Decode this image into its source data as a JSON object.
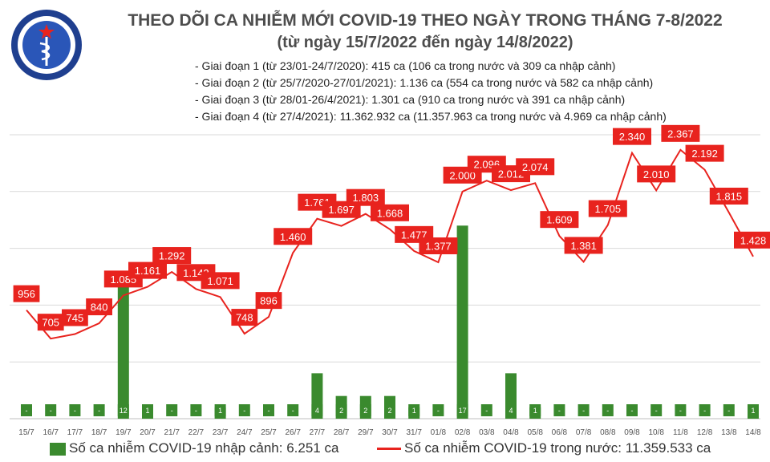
{
  "header": {
    "title": "THEO DÕI CA NHIỄM MỚI COVID-19 THEO NGÀY TRONG THÁNG 7-8/2022",
    "subtitle": "(từ ngày 15/7/2022 đến ngày 14/8/2022)",
    "logo_top_text": "BỘ Y TẾ",
    "logo_bottom_text": "MINISTRY OF HEALTH"
  },
  "notes": [
    "- Giai đoạn 1 (từ 23/01-24/7/2020): 415 ca (106 ca trong nước và 309 ca nhập cảnh)",
    "- Giai đoạn 2 (từ 25/7/2020-27/01/2021): 1.136 ca (554 ca trong nước và 582 ca nhập cảnh)",
    "- Giai đoạn 3 (từ 28/01-26/4/2021): 1.301 ca (910 ca trong nước và 391 ca nhập cảnh)",
    "- Giai đoạn 4 (từ 27/4/2021): 11.362.932 ca (11.357.963 ca trong nước và 4.969 ca nhập cảnh)"
  ],
  "legend": {
    "bar": "Số ca nhiễm COVID-19 nhập cảnh: 6.251 ca",
    "line": "Số ca nhiễm COVID-19 trong nước: 11.359.533 ca"
  },
  "colors": {
    "bar": "#3a8a2e",
    "line": "#e8231e",
    "label_bg": "#e8231e",
    "label_text": "#ffffff",
    "bar_label_text": "#ffffff",
    "grid": "#d9d9d9",
    "title": "#4d4d4d"
  },
  "chart_data": {
    "type": "bar",
    "categories": [
      "15/7",
      "16/7",
      "17/7",
      "18/7",
      "19/7",
      "20/7",
      "21/7",
      "22/7",
      "23/7",
      "24/7",
      "25/7",
      "26/7",
      "27/7",
      "28/7",
      "29/7",
      "30/7",
      "31/7",
      "01/8",
      "02/8",
      "03/8",
      "04/8",
      "05/8",
      "06/8",
      "07/8",
      "08/8",
      "09/8",
      "10/8",
      "11/8",
      "12/8",
      "13/8",
      "14/8"
    ],
    "series": [
      {
        "name": "Số ca nhiễm COVID-19 nhập cảnh: 6.251 ca",
        "type": "bar",
        "axis": "right",
        "values": [
          0,
          0,
          0,
          0,
          12,
          1,
          0,
          0,
          1,
          0,
          0,
          0,
          4,
          2,
          2,
          2,
          1,
          0,
          17,
          0,
          4,
          1,
          0,
          0,
          0,
          0,
          0,
          0,
          0,
          0,
          1
        ],
        "labels": [
          "-",
          "-",
          "-",
          "-",
          "12",
          "1",
          "-",
          "-",
          "1",
          "-",
          "-",
          "-",
          "4",
          "2",
          "2",
          "2",
          "1",
          "-",
          "17",
          "-",
          "4",
          "1",
          "-",
          "-",
          "-",
          "-",
          "-",
          "-",
          "-",
          "-",
          "1"
        ]
      },
      {
        "name": "Số ca nhiễm COVID-19 trong nước: 11.359.533 ca",
        "type": "line",
        "axis": "left",
        "values": [
          956,
          705,
          745,
          840,
          1085,
          1161,
          1292,
          1142,
          1071,
          748,
          896,
          1460,
          1761,
          1697,
          1803,
          1668,
          1477,
          1377,
          2000,
          2096,
          2012,
          2074,
          1609,
          1381,
          1705,
          2340,
          2010,
          2367,
          2192,
          1815,
          1428
        ],
        "labels": [
          "956",
          "705",
          "745",
          "840",
          "1.085",
          "1.161",
          "1.292",
          "1.142",
          "1.071",
          "748",
          "896",
          "1.460",
          "1.761",
          "1.697",
          "1.803",
          "1.668",
          "1.477",
          "1.377",
          "2.000",
          "2.096",
          "2.012",
          "2.074",
          "1.609",
          "1.381",
          "1.705",
          "2.340",
          "2.010",
          "2.367",
          "2.192",
          "1.815",
          "1.428"
        ]
      }
    ],
    "left_axis_range": [
      0,
      2500
    ],
    "right_axis_range": [
      0,
      25
    ],
    "grid": true,
    "legend_position": "bottom"
  }
}
